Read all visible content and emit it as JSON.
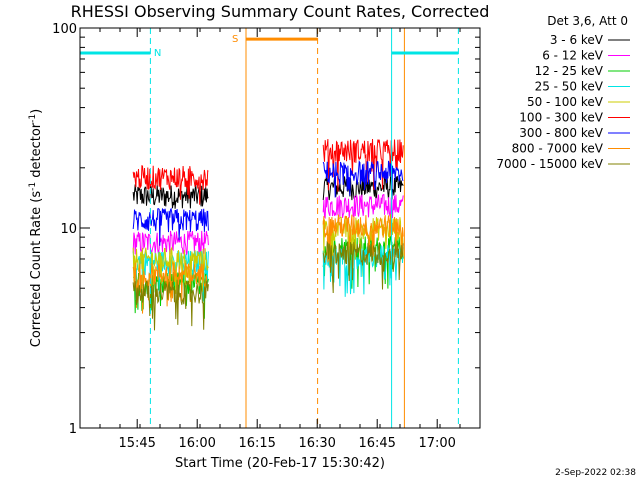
{
  "chart_data": {
    "type": "line",
    "title": "RHESSI Observing Summary Count Rates, Corrected",
    "xlabel": "Start Time (20-Feb-17 15:30:42)",
    "ylabel_main": "Corrected Count Rate (s",
    "ylabel_sup1": "-1",
    "ylabel_mid": " detector",
    "ylabel_sup2": "-1",
    "ylabel_end": ")",
    "yscale": "log",
    "ylim": [
      1,
      100
    ],
    "xlim_minutes": [
      0,
      100
    ],
    "x_ticks": [
      {
        "label": "15:45",
        "t": 14.3
      },
      {
        "label": "16:00",
        "t": 29.3
      },
      {
        "label": "16:15",
        "t": 44.3
      },
      {
        "label": "16:30",
        "t": 59.3
      },
      {
        "label": "16:45",
        "t": 74.3
      },
      {
        "label": "17:00",
        "t": 89.3
      }
    ],
    "y_ticks": [
      {
        "label": "1",
        "v": 1
      },
      {
        "label": "10",
        "v": 10
      },
      {
        "label": "100",
        "v": 100
      }
    ],
    "legend_header": "Det 3,6, Att 0",
    "legend_position": "right-outside",
    "series": [
      {
        "name": "3 - 6 keV",
        "color": "#000000",
        "levels": [
          14.5,
          16.0
        ]
      },
      {
        "name": "6 - 12 keV",
        "color": "#ff00ff",
        "levels": [
          8.5,
          13.0
        ]
      },
      {
        "name": "12 - 25 keV",
        "color": "#00cc00",
        "levels": [
          5.3,
          8.0
        ]
      },
      {
        "name": "25 - 50 keV",
        "color": "#00e5e5",
        "levels": [
          6.8,
          7.2
        ]
      },
      {
        "name": "50 - 100 keV",
        "color": "#cccc00",
        "levels": [
          7.0,
          10.0
        ]
      },
      {
        "name": "100 - 300 keV",
        "color": "#ff0000",
        "levels": [
          18.0,
          24.5
        ]
      },
      {
        "name": "300 - 800 keV",
        "color": "#0000ff",
        "levels": [
          11.0,
          19.0
        ]
      },
      {
        "name": "800 - 7000 keV",
        "color": "#ff8c00",
        "levels": [
          5.9,
          10.3
        ]
      },
      {
        "name": "7000 - 15000 keV",
        "color": "#808000",
        "levels": [
          4.8,
          7.5
        ]
      }
    ],
    "data_segments": [
      {
        "start": 13.3,
        "end": 32.1
      },
      {
        "start": 60.8,
        "end": 80.8
      }
    ],
    "bars": [
      {
        "label": "N",
        "color": "#00e5e5",
        "y": 75,
        "start": 0,
        "end": 17.6,
        "label_x": 19.4
      },
      {
        "label": "",
        "color": "#00e5e5",
        "y": 75,
        "start": 77.9,
        "end": 94.6,
        "label_x": null
      },
      {
        "label": "S",
        "color": "#ff8c00",
        "y": 88,
        "start": 41.5,
        "end": 59.4,
        "label_x": 38.8
      }
    ],
    "vlines": [
      {
        "t": 0,
        "color": "#00e5e5",
        "dashed": false
      },
      {
        "t": 17.6,
        "color": "#00e5e5",
        "dashed": true
      },
      {
        "t": 41.5,
        "color": "#ff8c00",
        "dashed": false
      },
      {
        "t": 59.4,
        "color": "#ff8c00",
        "dashed": true
      },
      {
        "t": 77.9,
        "color": "#00e5e5",
        "dashed": false
      },
      {
        "t": 94.6,
        "color": "#00e5e5",
        "dashed": true
      },
      {
        "t": 81.1,
        "color": "#ff8c00",
        "dashed": false
      }
    ],
    "timestamp": "2-Sep-2022 02:38"
  }
}
